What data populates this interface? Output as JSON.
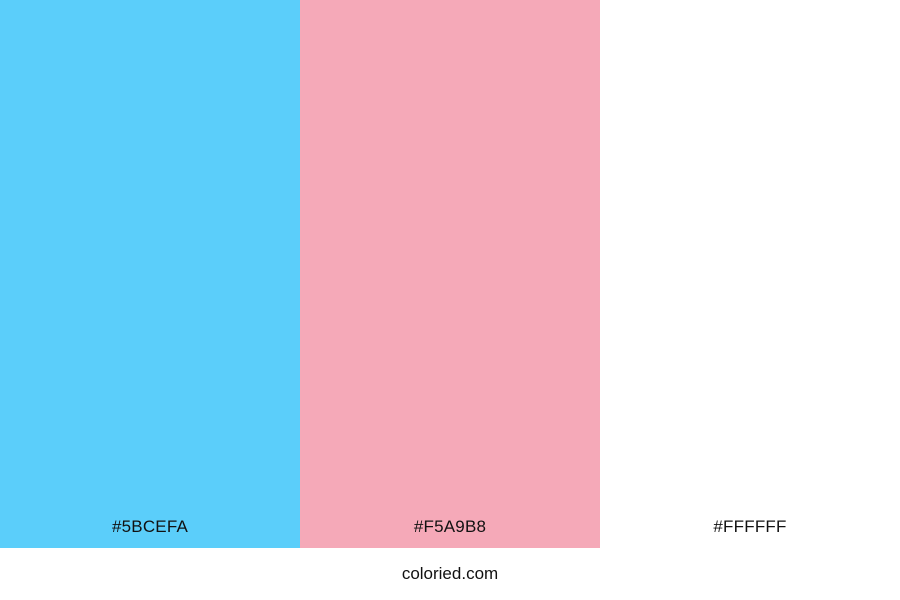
{
  "palette": {
    "swatches": [
      {
        "name": "blue",
        "hex": "#5BCEFA",
        "label": "#5BCEFA",
        "text_color": "#111111"
      },
      {
        "name": "pink",
        "hex": "#F5A9B8",
        "label": "#F5A9B8",
        "text_color": "#111111"
      },
      {
        "name": "white",
        "hex": "#FFFFFF",
        "label": "#FFFFFF",
        "text_color": "#111111"
      }
    ]
  },
  "footer": {
    "site_label": "coloried.com"
  }
}
